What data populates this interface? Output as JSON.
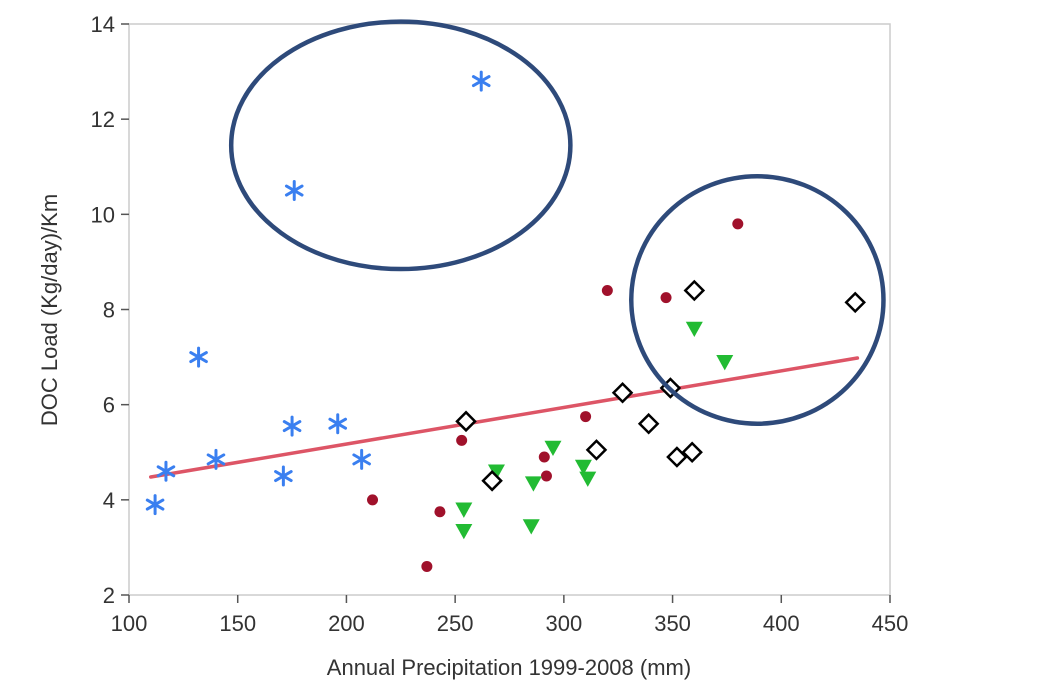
{
  "chart_data": {
    "type": "scatter",
    "title": "",
    "xlabel": "Annual Precipitation 1999-2008 (mm)",
    "ylabel": "DOC Load (Kg/day)/Km",
    "xlim": [
      100,
      450
    ],
    "ylim": [
      2,
      14
    ],
    "xticks": [
      "100",
      "150",
      "200",
      "250",
      "300",
      "350",
      "400",
      "450"
    ],
    "yticks": [
      "2",
      "4",
      "6",
      "8",
      "10",
      "12",
      "14"
    ],
    "grid": false,
    "legend": "none",
    "series": [
      {
        "marker": "asterisk",
        "color": "#3a7ff0",
        "x": [
          112,
          117,
          132,
          140,
          171,
          175,
          196,
          207,
          176,
          262
        ],
        "y": [
          3.9,
          4.6,
          7.0,
          4.85,
          4.5,
          5.55,
          5.6,
          4.85,
          10.5,
          12.8
        ]
      },
      {
        "marker": "circle",
        "color": "#a0112b",
        "x": [
          212,
          237,
          243,
          253,
          291,
          292,
          310,
          320,
          347,
          380
        ],
        "y": [
          4.0,
          2.6,
          3.75,
          5.25,
          4.9,
          4.5,
          5.75,
          8.4,
          8.25,
          9.8
        ]
      },
      {
        "marker": "triangle-down",
        "color": "#22bb33",
        "x": [
          254,
          254,
          269,
          285,
          286,
          295,
          309,
          311,
          360,
          374
        ],
        "y": [
          3.8,
          3.35,
          4.6,
          3.45,
          4.35,
          5.1,
          4.7,
          4.45,
          7.6,
          6.9
        ]
      },
      {
        "marker": "diamond",
        "color": "#000000",
        "x": [
          255,
          267,
          315,
          327,
          339,
          349,
          352,
          359,
          360,
          434
        ],
        "y": [
          5.65,
          4.4,
          5.05,
          6.25,
          5.6,
          6.35,
          4.9,
          5.0,
          8.4,
          8.15
        ]
      }
    ],
    "fit_line": {
      "color": "#dd5566",
      "x": [
        110,
        435
      ],
      "y": [
        4.48,
        6.98
      ]
    },
    "annotations": [
      {
        "shape": "ellipse",
        "color": "#2e4a7a",
        "center": [
          225,
          11.45
        ],
        "radius": [
          78,
          2.6
        ]
      },
      {
        "shape": "ellipse",
        "color": "#2e4a7a",
        "center": [
          389,
          8.2
        ],
        "radius": [
          58,
          2.6
        ]
      }
    ]
  }
}
